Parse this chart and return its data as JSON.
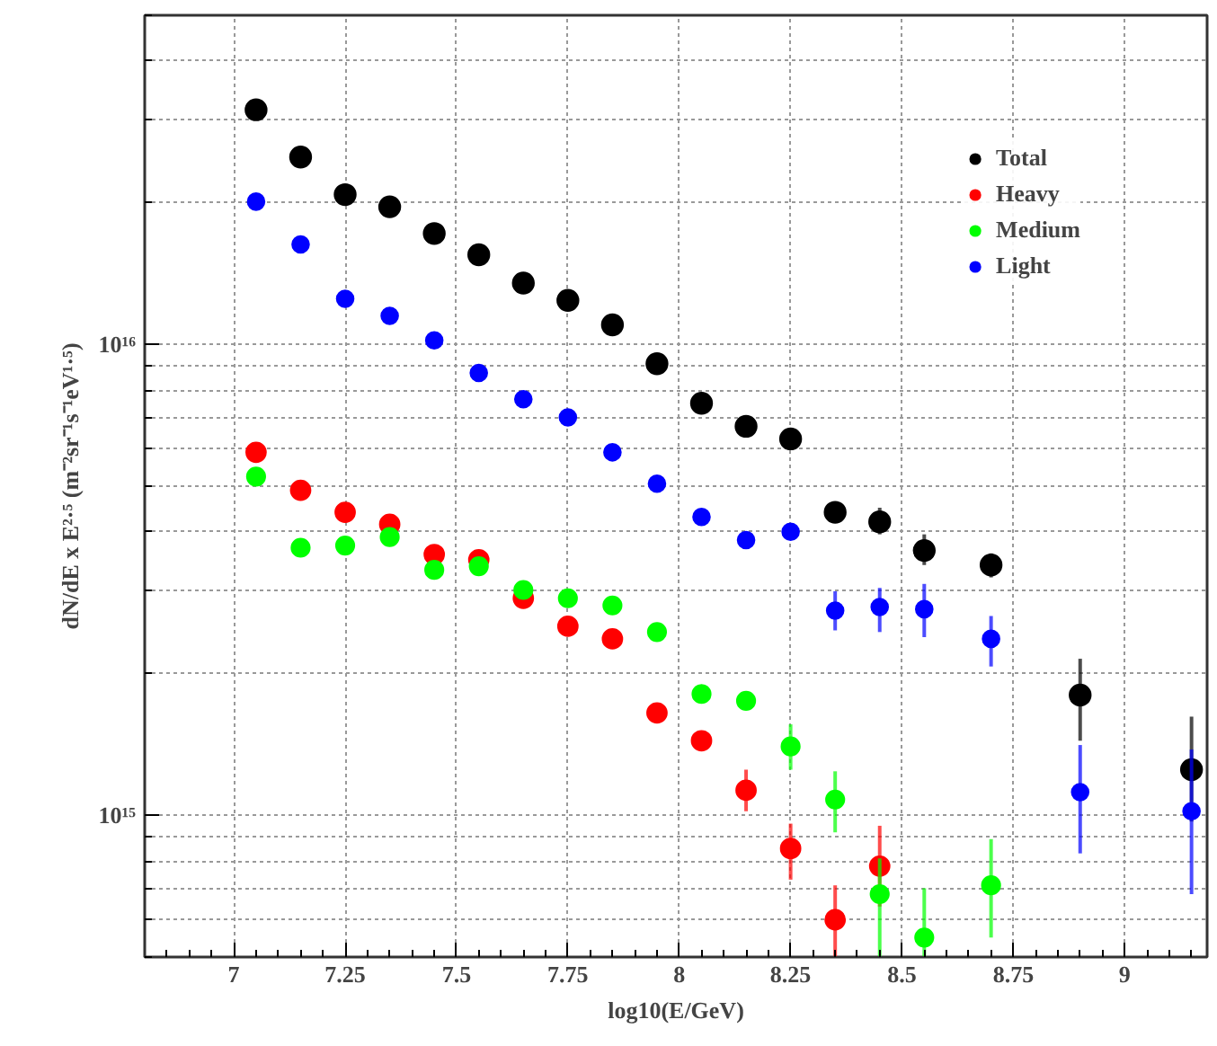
{
  "chart_data": {
    "type": "scatter",
    "xlabel": "log10(E/GeV)",
    "ylabel": "dN/dE x E²·⁵ (m⁻²sr⁻¹s⁻¹eV¹·⁵)",
    "x": [
      7.05,
      7.15,
      7.25,
      7.35,
      7.45,
      7.55,
      7.65,
      7.75,
      7.85,
      7.95,
      8.05,
      8.15,
      8.25,
      8.35,
      8.45,
      8.55,
      8.7,
      8.9,
      9.15
    ],
    "xlim": [
      6.8,
      9.185
    ],
    "xticks": [
      7,
      7.25,
      7.5,
      7.75,
      8,
      8.25,
      8.5,
      8.75,
      9
    ],
    "ylim": [
      500000000000000.0,
      5e+16
    ],
    "yticks": [
      {
        "value": 1000000000000000.0,
        "label": "10¹⁵"
      },
      {
        "value": 1e+16,
        "label": "10¹⁶"
      }
    ],
    "log": "y",
    "grid": true,
    "legend": "top right",
    "marker": "circle",
    "series": [
      {
        "name": "Total",
        "color": "#000000",
        "values": [
          3.15e+16,
          2.5e+16,
          2.08e+16,
          1.96e+16,
          1.72e+16,
          1.55e+16,
          1.35e+16,
          1.24e+16,
          1.1e+16,
          9100000000000000.0,
          7500000000000000.0,
          6700000000000000.0,
          6300000000000000.0,
          4400000000000000.0,
          4200000000000000.0,
          3650000000000000.0,
          3400000000000000.0,
          1800000000000000.0,
          1250000000000000.0
        ],
        "errors": [
          null,
          null,
          null,
          null,
          null,
          null,
          null,
          null,
          null,
          null,
          null,
          null,
          null,
          null,
          [
            3950000000000000.0,
            4500000000000000.0
          ],
          [
            3400000000000000.0,
            3950000000000000.0
          ],
          [
            3200000000000000.0,
            3600000000000000.0
          ],
          [
            1440000000000000.0,
            2150000000000000.0
          ],
          [
            970000000000000.0,
            1620000000000000.0
          ]
        ]
      },
      {
        "name": "Heavy",
        "color": "#ff0000",
        "values": [
          5900000000000000.0,
          4900000000000000.0,
          4400000000000000.0,
          4150000000000000.0,
          3580000000000000.0,
          3490000000000000.0,
          2890000000000000.0,
          2520000000000000.0,
          2370000000000000.0,
          1650000000000000.0,
          1440000000000000.0,
          1130000000000000.0,
          850000000000000.0,
          600000000000000.0,
          780000000000000.0,
          null,
          null,
          null,
          null
        ],
        "errors": [
          null,
          null,
          null,
          null,
          null,
          null,
          null,
          null,
          null,
          null,
          null,
          [
            1020000000000000.0,
            1250000000000000.0
          ],
          [
            730000000000000.0,
            960000000000000.0
          ],
          [
            500000000000000.0,
            710000000000000.0
          ],
          [
            640000000000000.0,
            950000000000000.0
          ],
          null,
          null,
          null,
          null
        ]
      },
      {
        "name": "Medium",
        "color": "#00ff00",
        "values": [
          5240000000000000.0,
          3700000000000000.0,
          3740000000000000.0,
          3900000000000000.0,
          3320000000000000.0,
          3380000000000000.0,
          3010000000000000.0,
          2890000000000000.0,
          2790000000000000.0,
          2450000000000000.0,
          1810000000000000.0,
          1750000000000000.0,
          1400000000000000.0,
          1080000000000000.0,
          680000000000000.0,
          550000000000000.0,
          710000000000000.0,
          null,
          null
        ],
        "errors": [
          null,
          null,
          null,
          null,
          null,
          null,
          null,
          null,
          null,
          null,
          null,
          null,
          [
            1250000000000000.0,
            1560000000000000.0
          ],
          [
            920000000000000.0,
            1240000000000000.0
          ],
          [
            500000000000000.0,
            810000000000000.0
          ],
          [
            500000000000000.0,
            700000000000000.0
          ],
          [
            550000000000000.0,
            890000000000000.0
          ],
          null,
          null
        ]
      },
      {
        "name": "Light",
        "color": "#0000ff",
        "values": [
          2.01e+16,
          1.63e+16,
          1.25e+16,
          1.15e+16,
          1.02e+16,
          8700000000000000.0,
          7650000000000000.0,
          7000000000000000.0,
          5900000000000000.0,
          5060000000000000.0,
          4300000000000000.0,
          3840000000000000.0,
          4000000000000000.0,
          2720000000000000.0,
          2770000000000000.0,
          2740000000000000.0,
          2370000000000000.0,
          1120000000000000.0,
          1020000000000000.0
        ],
        "errors": [
          null,
          null,
          null,
          null,
          null,
          null,
          null,
          null,
          null,
          null,
          null,
          null,
          null,
          [
            2470000000000000.0,
            2990000000000000.0
          ],
          [
            2450000000000000.0,
            3040000000000000.0
          ],
          [
            2390000000000000.0,
            3100000000000000.0
          ],
          [
            2070000000000000.0,
            2650000000000000.0
          ],
          [
            830000000000000.0,
            1410000000000000.0
          ],
          [
            680000000000000.0,
            1380000000000000.0
          ]
        ]
      }
    ]
  }
}
